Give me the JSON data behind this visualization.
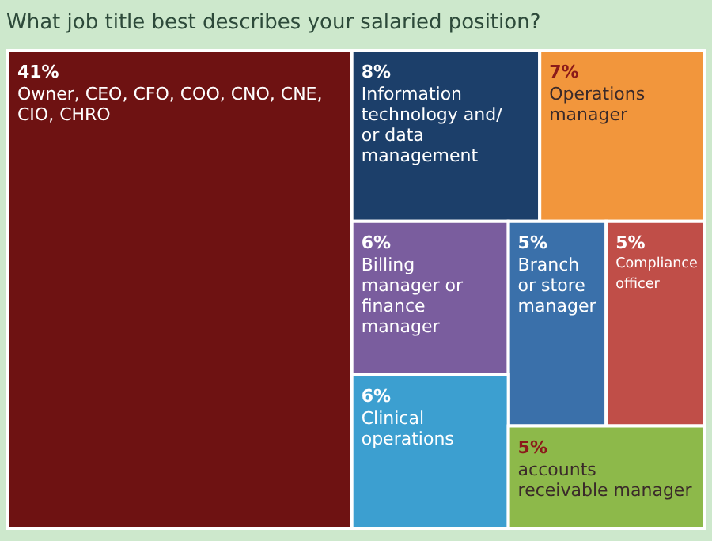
{
  "chart_data": {
    "type": "other",
    "title": "What job title best describes your salaried position?",
    "categories": [
      "Owner, CEO, CFO, COO, CNO, CNE, CIO, CHRO",
      "Information technology and/ or data management",
      "Operations manager",
      "Billing manager or finance manager",
      "Branch or store manager",
      "Compliance officer",
      "Clinical operations",
      "accounts receivable manager"
    ],
    "values": [
      41,
      8,
      7,
      6,
      5,
      5,
      6,
      5
    ],
    "value_labels": [
      "41%",
      "8%",
      "7%",
      "6%",
      "5%",
      "5%",
      "6%",
      "5%"
    ],
    "colors": [
      "#6e1212",
      "#1c3f6a",
      "#f2963c",
      "#7a5d9e",
      "#3a70aa",
      "#c04e48",
      "#3c9fd0",
      "#8db94a"
    ]
  }
}
